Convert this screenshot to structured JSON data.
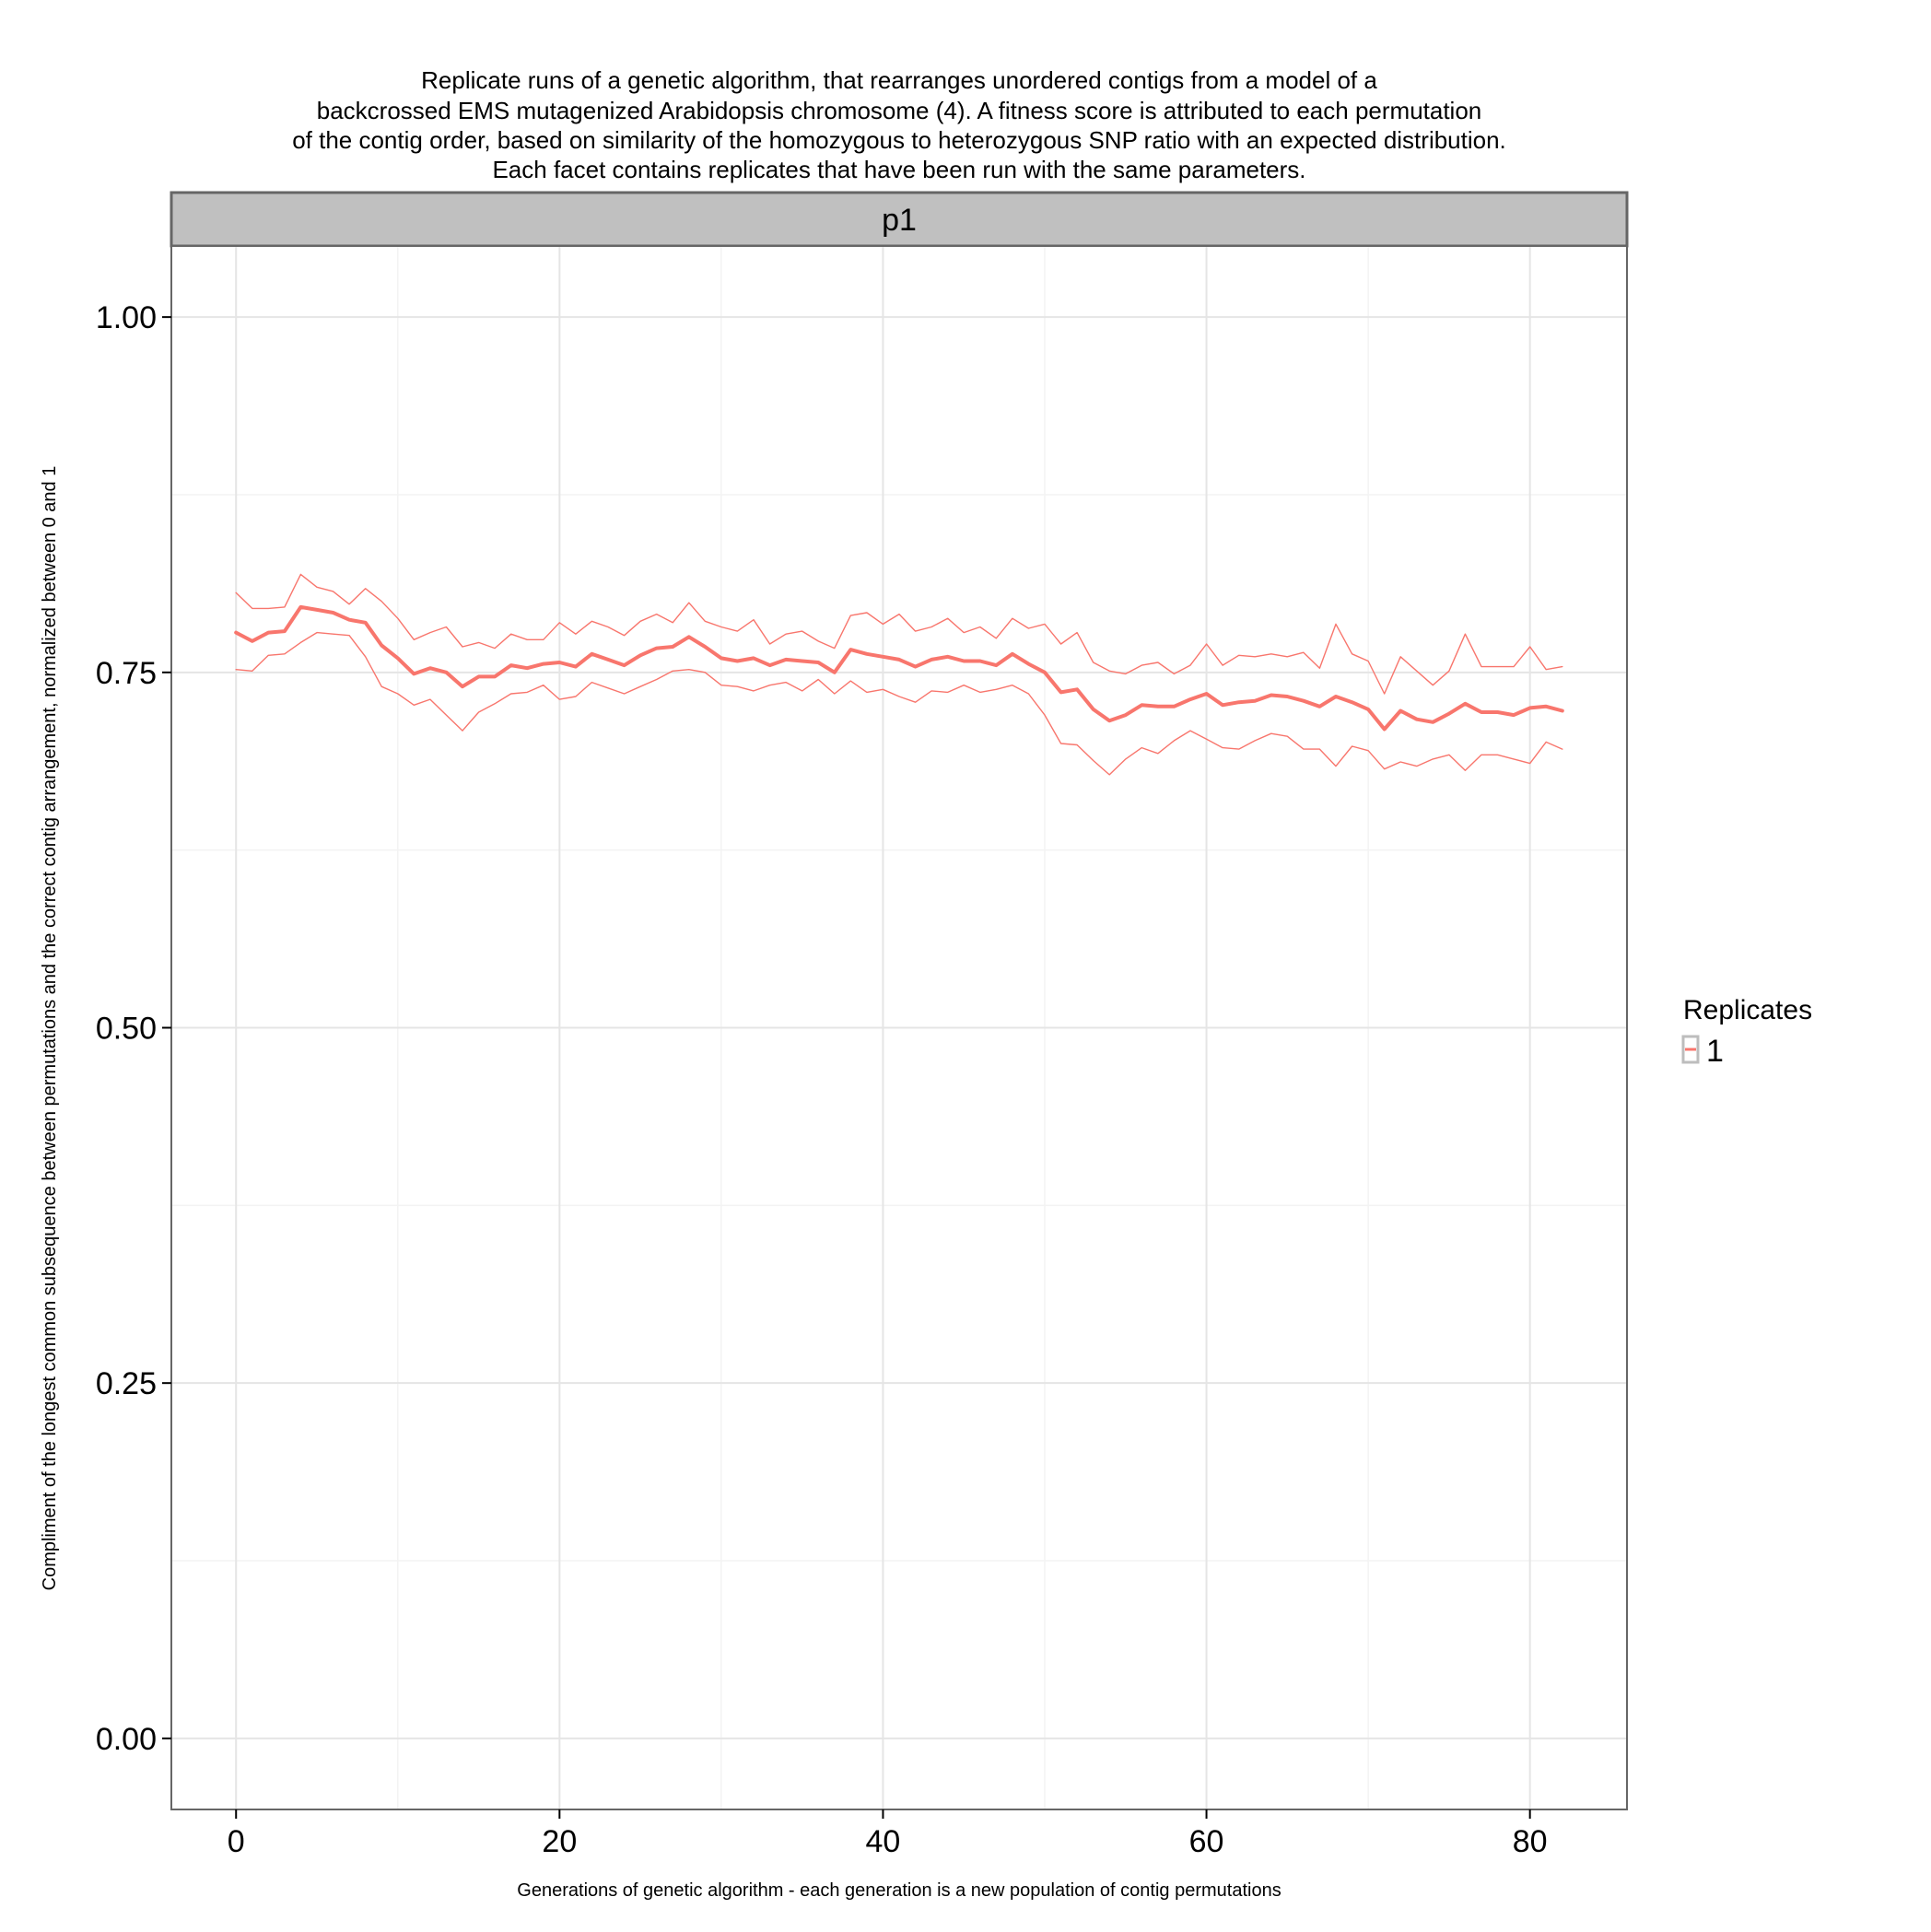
{
  "chart_data": {
    "type": "line",
    "title": [
      "Replicate runs of a genetic algorithm, that rearranges unordered contigs from a model of a",
      "backcrossed EMS mutagenized Arabidopsis chromosome (4). A fitness score is attributed to each permutation",
      "of the contig order, based on similarity of the homozygous to heterozygous SNP ratio with an expected distribution.",
      "Each facet contains replicates that have been run with the same parameters."
    ],
    "facet": "p1",
    "xlabel": "Generations of genetic algorithm - each generation is a new population of contig permutations",
    "ylabel": "Compliment of the longest common subsequence between permutations and the correct contig arrangement, normalized between 0 and 1",
    "xlim": [
      -4,
      86
    ],
    "ylim": [
      -0.05,
      1.05
    ],
    "x_ticks": [
      "0",
      "20",
      "40",
      "60",
      "80"
    ],
    "y_ticks": [
      "0.00",
      "0.25",
      "0.50",
      "0.75",
      "1.00"
    ],
    "grid": true,
    "legend": {
      "title": "Replicates",
      "entries": [
        "1"
      ],
      "position": "right"
    },
    "colors": {
      "series": "#F8766D",
      "panel_border": "#666666",
      "strip_fill": "#C0C0C0",
      "grid": "#E5E5E5"
    },
    "x": [
      0,
      1,
      2,
      3,
      4,
      5,
      6,
      7,
      8,
      9,
      10,
      11,
      12,
      13,
      14,
      15,
      16,
      17,
      18,
      19,
      20,
      21,
      22,
      23,
      24,
      25,
      26,
      27,
      28,
      29,
      30,
      31,
      32,
      33,
      34,
      35,
      36,
      37,
      38,
      39,
      40,
      41,
      42,
      43,
      44,
      45,
      46,
      47,
      48,
      49,
      50,
      51,
      52,
      53,
      54,
      55,
      56,
      57,
      58,
      59,
      60,
      61,
      62,
      63,
      64,
      65,
      66,
      67,
      68,
      69,
      70,
      71,
      72,
      73,
      74,
      75,
      76,
      77,
      78,
      79,
      80,
      81,
      82
    ],
    "series": [
      {
        "name": "1",
        "role": "mean",
        "values": [
          0.778,
          0.772,
          0.778,
          0.779,
          0.796,
          0.794,
          0.792,
          0.787,
          0.785,
          0.769,
          0.76,
          0.749,
          0.753,
          0.75,
          0.74,
          0.747,
          0.747,
          0.755,
          0.753,
          0.756,
          0.757,
          0.754,
          0.763,
          0.759,
          0.755,
          0.762,
          0.767,
          0.768,
          0.775,
          0.768,
          0.76,
          0.758,
          0.76,
          0.755,
          0.759,
          0.758,
          0.757,
          0.75,
          0.766,
          0.763,
          0.761,
          0.759,
          0.754,
          0.759,
          0.761,
          0.758,
          0.758,
          0.755,
          0.763,
          0.756,
          0.75,
          0.736,
          0.738,
          0.724,
          0.716,
          0.72,
          0.727,
          0.726,
          0.726,
          0.731,
          0.735,
          0.727,
          0.729,
          0.73,
          0.734,
          0.733,
          0.73,
          0.726,
          0.733,
          0.729,
          0.724,
          0.71,
          0.723,
          0.717,
          0.715,
          0.721,
          0.728,
          0.722,
          0.722,
          0.72,
          0.725,
          0.726,
          0.723
        ]
      },
      {
        "name": "1",
        "role": "upper",
        "values": [
          0.806,
          0.795,
          0.795,
          0.796,
          0.819,
          0.81,
          0.807,
          0.798,
          0.809,
          0.8,
          0.788,
          0.773,
          0.778,
          0.782,
          0.768,
          0.771,
          0.767,
          0.777,
          0.773,
          0.773,
          0.785,
          0.777,
          0.786,
          0.782,
          0.776,
          0.786,
          0.791,
          0.785,
          0.799,
          0.786,
          0.782,
          0.779,
          0.787,
          0.77,
          0.777,
          0.779,
          0.772,
          0.767,
          0.79,
          0.792,
          0.784,
          0.791,
          0.779,
          0.782,
          0.788,
          0.778,
          0.782,
          0.774,
          0.788,
          0.781,
          0.784,
          0.77,
          0.778,
          0.757,
          0.751,
          0.749,
          0.755,
          0.757,
          0.749,
          0.755,
          0.77,
          0.755,
          0.762,
          0.761,
          0.763,
          0.761,
          0.764,
          0.753,
          0.784,
          0.763,
          0.758,
          0.735,
          0.761,
          0.751,
          0.741,
          0.751,
          0.777,
          0.754,
          0.754,
          0.754,
          0.768,
          0.752,
          0.754
        ]
      },
      {
        "name": "1",
        "role": "lower",
        "values": [
          0.752,
          0.751,
          0.762,
          0.763,
          0.771,
          0.778,
          0.777,
          0.776,
          0.761,
          0.74,
          0.735,
          0.727,
          0.731,
          0.72,
          0.709,
          0.722,
          0.728,
          0.735,
          0.736,
          0.741,
          0.731,
          0.733,
          0.743,
          0.739,
          0.735,
          0.74,
          0.745,
          0.751,
          0.752,
          0.75,
          0.741,
          0.74,
          0.737,
          0.741,
          0.743,
          0.737,
          0.745,
          0.735,
          0.744,
          0.736,
          0.738,
          0.733,
          0.729,
          0.737,
          0.736,
          0.741,
          0.736,
          0.738,
          0.741,
          0.735,
          0.72,
          0.7,
          0.699,
          0.688,
          0.678,
          0.689,
          0.697,
          0.693,
          0.702,
          0.709,
          0.703,
          0.697,
          0.696,
          0.702,
          0.707,
          0.705,
          0.696,
          0.696,
          0.684,
          0.698,
          0.695,
          0.682,
          0.687,
          0.684,
          0.689,
          0.692,
          0.681,
          0.692,
          0.692,
          0.689,
          0.686,
          0.701,
          0.696
        ]
      }
    ]
  }
}
